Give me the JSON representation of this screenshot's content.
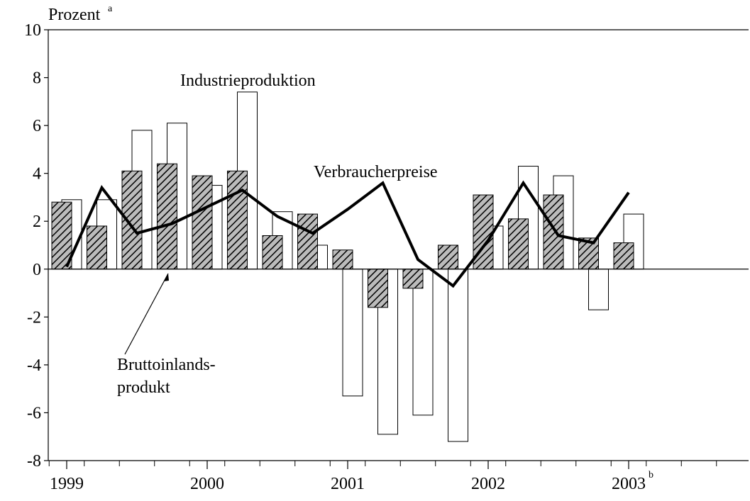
{
  "chart_data": {
    "type": "bar_line",
    "y_axis_label": "Prozent",
    "y_axis_label_note": "a",
    "category_note": "b",
    "categories": [
      "1999",
      null,
      null,
      null,
      "2000",
      null,
      null,
      null,
      "2001",
      null,
      null,
      null,
      "2002",
      null,
      null,
      null,
      "2003"
    ],
    "series": [
      {
        "label_lines": [
          "Bruttoinlands-",
          "produkt"
        ],
        "kind": "bar",
        "pattern": "hatched",
        "color": "#000000",
        "values": [
          2.8,
          1.8,
          4.1,
          4.4,
          3.9,
          4.1,
          1.4,
          2.3,
          0.8,
          -1.6,
          -0.8,
          1.0,
          3.1,
          2.1,
          3.1,
          1.3,
          1.1
        ]
      },
      {
        "name": "Industrieproduktion",
        "kind": "bar",
        "color": "#ffffff",
        "values": [
          2.9,
          2.9,
          5.8,
          6.1,
          3.5,
          7.4,
          2.4,
          1.0,
          -5.3,
          -6.9,
          -6.1,
          -7.2,
          1.8,
          4.3,
          3.9,
          -1.7,
          2.3
        ]
      },
      {
        "name": "Verbraucherpreise",
        "kind": "line",
        "color": "#000000",
        "values": [
          0.1,
          3.4,
          1.5,
          1.9,
          2.6,
          3.3,
          2.2,
          1.5,
          2.5,
          3.6,
          0.4,
          -0.7,
          1.2,
          3.6,
          1.4,
          1.1,
          3.2
        ]
      }
    ],
    "ylim": [
      -8,
      10
    ],
    "yticks": [
      -8,
      -6,
      -4,
      -2,
      0,
      2,
      4,
      6,
      8,
      10
    ]
  }
}
